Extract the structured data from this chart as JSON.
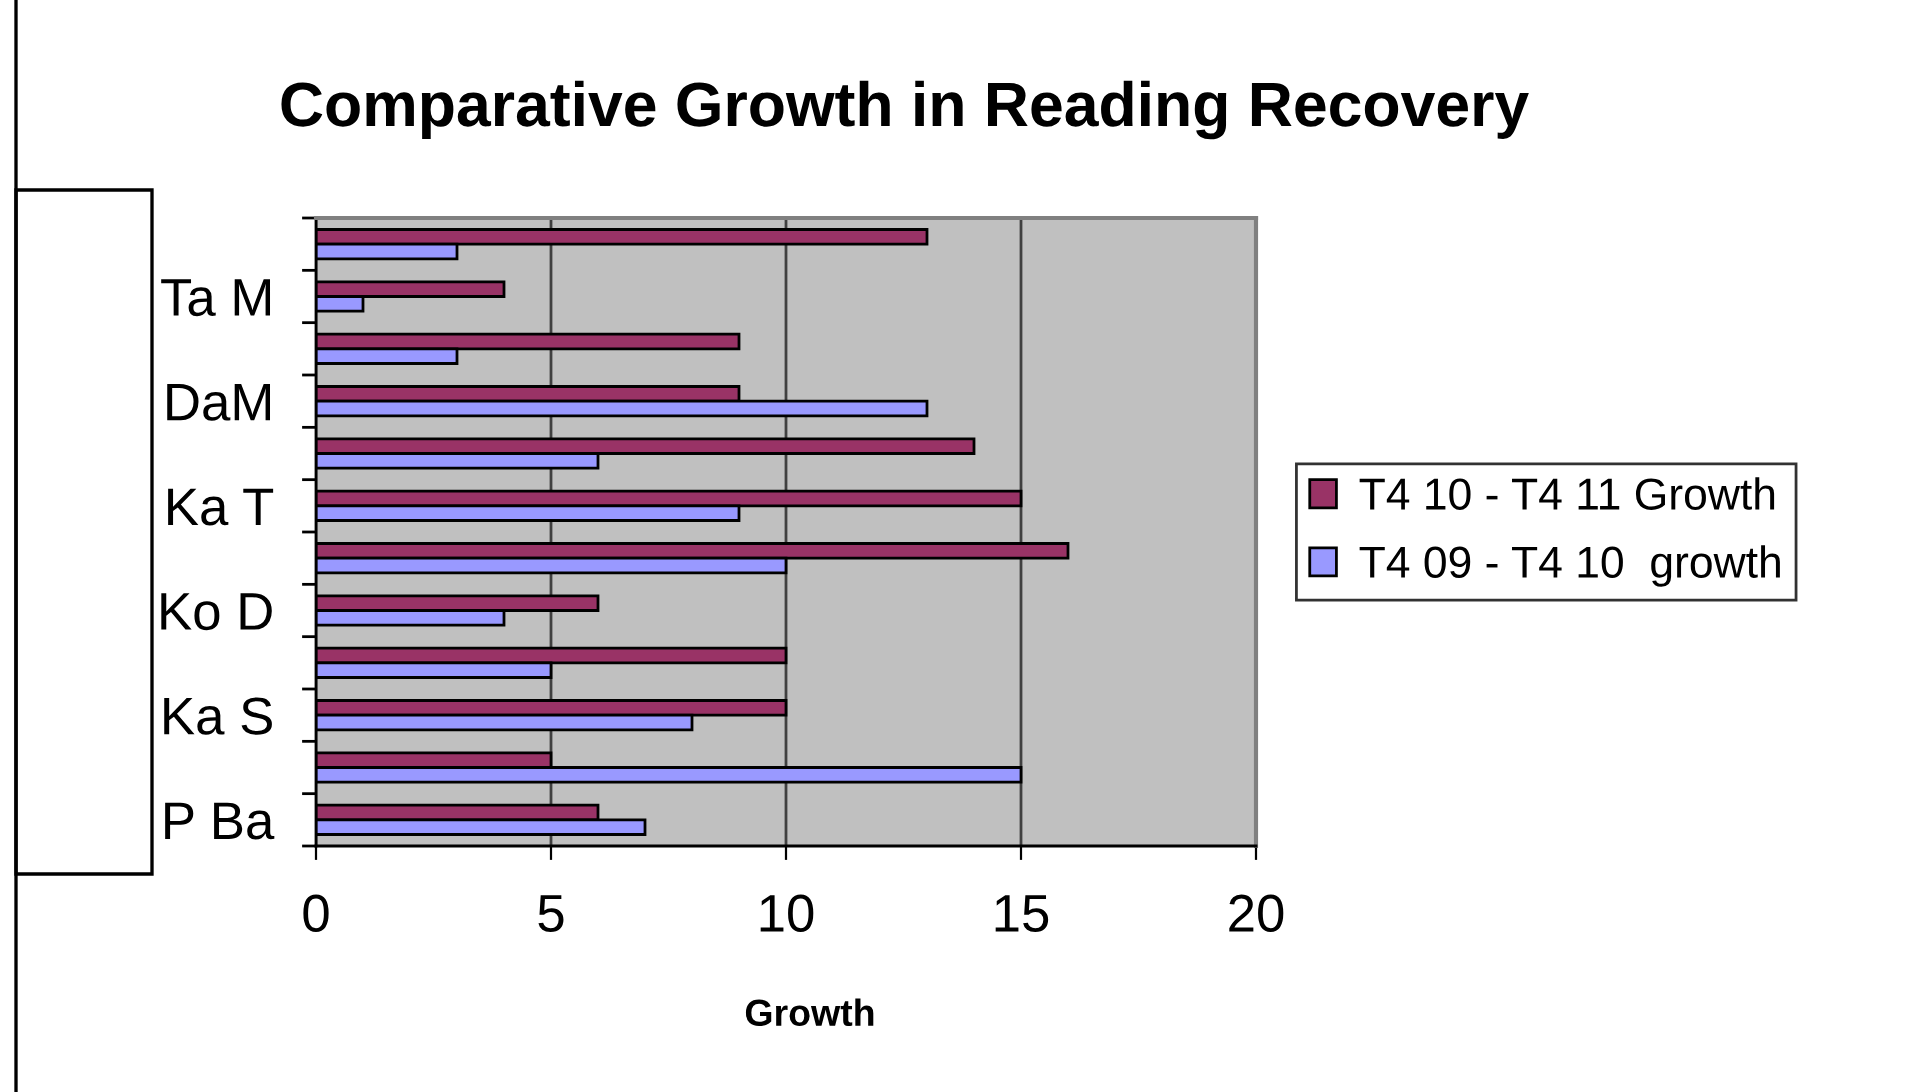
{
  "chart_data": {
    "type": "bar",
    "orientation": "horizontal",
    "title": "Comparative Growth in Reading Recovery",
    "xlabel": "Growth",
    "categories": [
      null,
      "Ta M",
      null,
      "DaM",
      null,
      "Ka T",
      null,
      "Ko D",
      null,
      "Ka S",
      null,
      "P Ba"
    ],
    "series": [
      {
        "name": "T4 10 - T4 11 Growth",
        "color": "#993366",
        "values": [
          13,
          4,
          9,
          9,
          14,
          15,
          16,
          6,
          10,
          10,
          5,
          6
        ]
      },
      {
        "name": "T4 09 - T4 10  growth",
        "color": "#9999ff",
        "values": [
          3,
          1,
          3,
          13,
          6,
          9,
          10,
          4,
          5,
          8,
          15,
          7
        ]
      }
    ],
    "xlim": [
      0,
      20
    ],
    "xticks": [
      0,
      5,
      10,
      15,
      20
    ],
    "grid": "x",
    "legend": "right"
  }
}
